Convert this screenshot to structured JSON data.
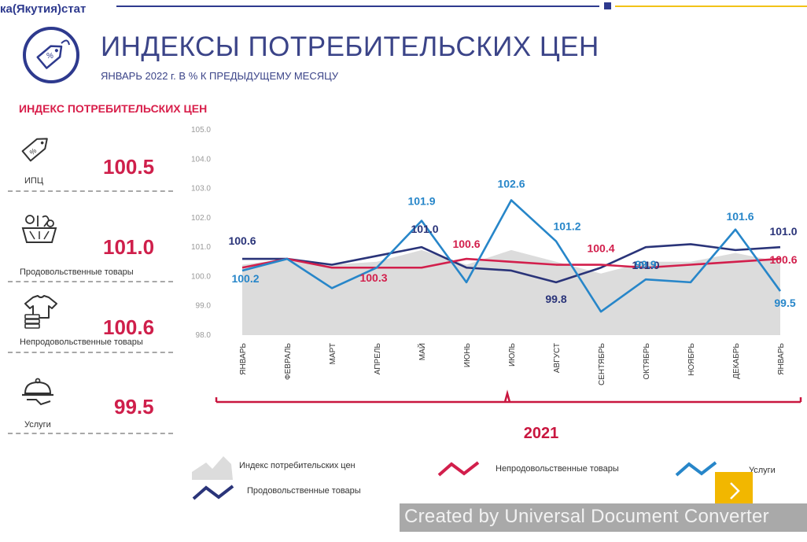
{
  "header": {
    "org": "ка(Якутия)стат",
    "title": "ИНДЕКСЫ ПОТРЕБИТЕЛЬСКИХ ЦЕН",
    "subtitle": "ЯНВАРЬ 2022 г. В % К ПРЕДЫДУЩЕМУ МЕСЯЦУ",
    "logo_icon": "price-tag-percent-icon",
    "logo_text": "%"
  },
  "sidebar": {
    "title": "ИНДЕКС ПОТРЕБИТЕЛЬСКИХ ЦЕН",
    "items": [
      {
        "label": "ИПЦ",
        "value": "100.5",
        "icon": "price-tag-icon"
      },
      {
        "label": "Продовольственные товары",
        "value": "101.0",
        "icon": "grocery-basket-icon"
      },
      {
        "label": "Непродовольственные товары",
        "value": "100.6",
        "icon": "clothes-icon"
      },
      {
        "label": "Услуги",
        "value": "99.5",
        "icon": "service-cloche-icon"
      }
    ]
  },
  "colors": {
    "cpi_fill": "#dcdcdc",
    "food": "#2a3479",
    "nonfood": "#d21f4c",
    "services": "#2786c9",
    "accent_red": "#cf1f4b",
    "yellow": "#f2b700"
  },
  "chart_data": {
    "type": "line",
    "title": "",
    "xlabel": "2021",
    "ylabel": "",
    "ylim": [
      98.0,
      105.0
    ],
    "yticks": [
      "98.0",
      "99.0",
      "100.0",
      "101.0",
      "102.0",
      "103.0",
      "104.0",
      "105.0"
    ],
    "categories": [
      "ЯНВАРЬ",
      "ФЕВРАЛЬ",
      "МАРТ",
      "АПРЕЛЬ",
      "МАЙ",
      "ИЮНЬ",
      "ИЮЛЬ",
      "АВГУСТ",
      "СЕНТЯБРЬ",
      "ОКТЯБРЬ",
      "НОЯБРЬ",
      "ДЕКАБРЬ",
      "ЯНВАРЬ"
    ],
    "series": [
      {
        "name": "Индекс потребительских цен",
        "kind": "area",
        "values": [
          100.4,
          100.6,
          100.4,
          100.5,
          100.9,
          100.4,
          100.9,
          100.5,
          100.1,
          100.5,
          100.5,
          100.8,
          100.5
        ]
      },
      {
        "name": "Продовольственные товары",
        "kind": "line",
        "values": [
          100.6,
          100.6,
          100.4,
          100.7,
          101.0,
          100.3,
          100.2,
          99.8,
          100.3,
          101.0,
          101.1,
          100.9,
          101.0
        ]
      },
      {
        "name": "Непродовольственные товары",
        "kind": "line",
        "values": [
          100.3,
          100.6,
          100.3,
          100.3,
          100.3,
          100.6,
          100.5,
          100.4,
          100.4,
          100.3,
          100.4,
          100.5,
          100.6
        ]
      },
      {
        "name": "Услуги",
        "kind": "line",
        "values": [
          100.2,
          100.6,
          99.6,
          100.3,
          101.9,
          99.8,
          102.6,
          101.2,
          98.8,
          99.9,
          99.8,
          101.6,
          99.5
        ]
      }
    ],
    "annotations": [
      {
        "text": "100.6",
        "series": 1,
        "index": 0
      },
      {
        "text": "100.2",
        "series": 3,
        "index": 0
      },
      {
        "text": "100.3",
        "series": 2,
        "index": 3
      },
      {
        "text": "101.9",
        "series": 3,
        "index": 4
      },
      {
        "text": "101.0",
        "series": 1,
        "index": 4
      },
      {
        "text": "100.6",
        "series": 2,
        "index": 5
      },
      {
        "text": "102.6",
        "series": 3,
        "index": 6
      },
      {
        "text": "101.2",
        "series": 3,
        "index": 7
      },
      {
        "text": "99.8",
        "series": 1,
        "index": 7
      },
      {
        "text": "100.4",
        "series": 2,
        "index": 8
      },
      {
        "text": "101.0",
        "series": 1,
        "index": 9
      },
      {
        "text": "99.9",
        "series": 3,
        "index": 9
      },
      {
        "text": "101.6",
        "series": 3,
        "index": 11
      },
      {
        "text": "101.0",
        "series": 1,
        "index": 12
      },
      {
        "text": "100.6",
        "series": 2,
        "index": 12
      },
      {
        "text": "99.5",
        "series": 3,
        "index": 12
      }
    ],
    "year_label": "2021",
    "legend": [
      {
        "label": "Индекс потребительских цен",
        "series": 0
      },
      {
        "label": "Непродовольственные товары",
        "series": 2
      },
      {
        "label": "Услуги",
        "series": 3
      },
      {
        "label": "Продовольственные товары",
        "series": 1
      }
    ]
  },
  "footer": {
    "watermark": "Created by Universal Document Converter",
    "next_icon": "chevron-right-icon",
    "next_glyph": "〉"
  }
}
